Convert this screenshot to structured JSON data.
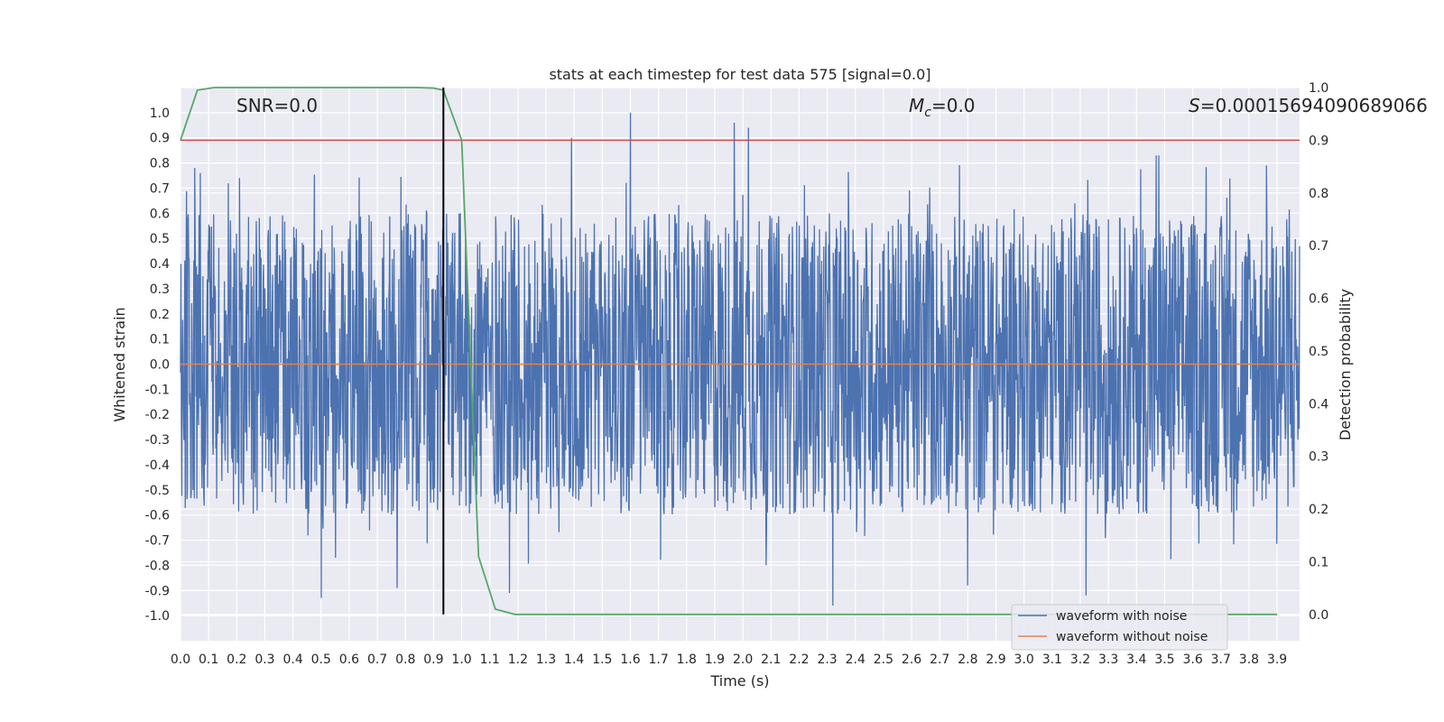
{
  "chart_data": {
    "type": "line",
    "title": "stats at each timestep for test data 575 [signal=0.0]",
    "xlabel": "Time (s)",
    "ylabel": "Whitened strain",
    "ylabel_right": "Detection probability",
    "xlim": [
      0.0,
      3.98
    ],
    "ylim": [
      -1.1,
      1.1
    ],
    "ylim_right": [
      -0.05,
      1.0
    ],
    "x_ticks": [
      "0.0",
      "0.1",
      "0.2",
      "0.3",
      "0.4",
      "0.5",
      "0.6",
      "0.7",
      "0.8",
      "0.9",
      "1.0",
      "1.1",
      "1.2",
      "1.3",
      "1.4",
      "1.5",
      "1.6",
      "1.7",
      "1.8",
      "1.9",
      "2.0",
      "2.1",
      "2.2",
      "2.3",
      "2.4",
      "2.5",
      "2.6",
      "2.7",
      "2.8",
      "2.9",
      "3.0",
      "3.1",
      "3.2",
      "3.3",
      "3.4",
      "3.5",
      "3.6",
      "3.7",
      "3.8",
      "3.9"
    ],
    "y_ticks": [
      "-1.0",
      "-0.9",
      "-0.8",
      "-0.7",
      "-0.6",
      "-0.5",
      "-0.4",
      "-0.3",
      "-0.2",
      "-0.1",
      "0.0",
      "0.1",
      "0.2",
      "0.3",
      "0.4",
      "0.5",
      "0.6",
      "0.7",
      "0.8",
      "0.9",
      "1.0"
    ],
    "y_ticks_right": [
      "0.0",
      "0.1",
      "0.2",
      "0.3",
      "0.4",
      "0.5",
      "0.6",
      "0.7",
      "0.8",
      "0.9",
      "1.0"
    ],
    "grid": true,
    "legend_position": "bottom-right",
    "annotations": {
      "snr": "SNR=0.0",
      "mc_symbol": "M",
      "mc_sub": "c",
      "mc_value": "=0.0",
      "s_symbol": "S",
      "s_value": "=0.00015694090689066"
    },
    "vertical_line_x": 0.935,
    "threshold_right": 0.9,
    "series": [
      {
        "name": "waveform with noise",
        "color": "#4c72b0",
        "axis": "left",
        "description": "dense whitened noise, roughly within ±0.6 with spikes to ±1.0",
        "peaks": [
          {
            "x": 0.05,
            "y": 0.78
          },
          {
            "x": 0.07,
            "y": 0.76
          },
          {
            "x": 0.21,
            "y": 0.74
          },
          {
            "x": 1.39,
            "y": 0.9
          },
          {
            "x": 1.6,
            "y": 1.0
          },
          {
            "x": 1.97,
            "y": 0.96
          },
          {
            "x": 2.02,
            "y": 0.94
          },
          {
            "x": 3.47,
            "y": 0.83
          },
          {
            "x": 3.48,
            "y": 0.83
          },
          {
            "x": 0.5,
            "y": -0.93
          },
          {
            "x": 0.77,
            "y": -0.89
          },
          {
            "x": 1.17,
            "y": -0.91
          },
          {
            "x": 2.32,
            "y": -0.96
          },
          {
            "x": 2.8,
            "y": -0.88
          },
          {
            "x": 3.22,
            "y": -0.92
          }
        ]
      },
      {
        "name": "waveform without noise",
        "color": "#dd8452",
        "axis": "left",
        "x": [
          0.0,
          3.98
        ],
        "y": [
          0.0,
          0.0
        ]
      },
      {
        "name": "",
        "color": "#55a868",
        "axis": "right",
        "x": [
          0.0,
          0.06,
          0.12,
          0.18,
          0.24,
          0.3,
          0.36,
          0.42,
          0.48,
          0.54,
          0.6,
          0.66,
          0.72,
          0.78,
          0.84,
          0.9,
          0.935,
          1.0,
          1.06,
          1.12,
          1.19,
          1.3,
          1.6,
          2.0,
          2.5,
          3.0,
          3.5,
          3.9
        ],
        "y": [
          0.9,
          0.995,
          1.0,
          1.0,
          1.0,
          1.0,
          1.0,
          1.0,
          1.0,
          1.0,
          1.0,
          1.0,
          1.0,
          1.0,
          1.0,
          0.999,
          0.995,
          0.9,
          0.11,
          0.01,
          0.0,
          0.0,
          0.0,
          0.0,
          0.0,
          0.0,
          0.0,
          0.0
        ]
      }
    ],
    "colors": {
      "background": "#eaeaf2",
      "grid": "#ffffff",
      "threshold": "#c44e52",
      "vertical_line": "#000000"
    }
  }
}
